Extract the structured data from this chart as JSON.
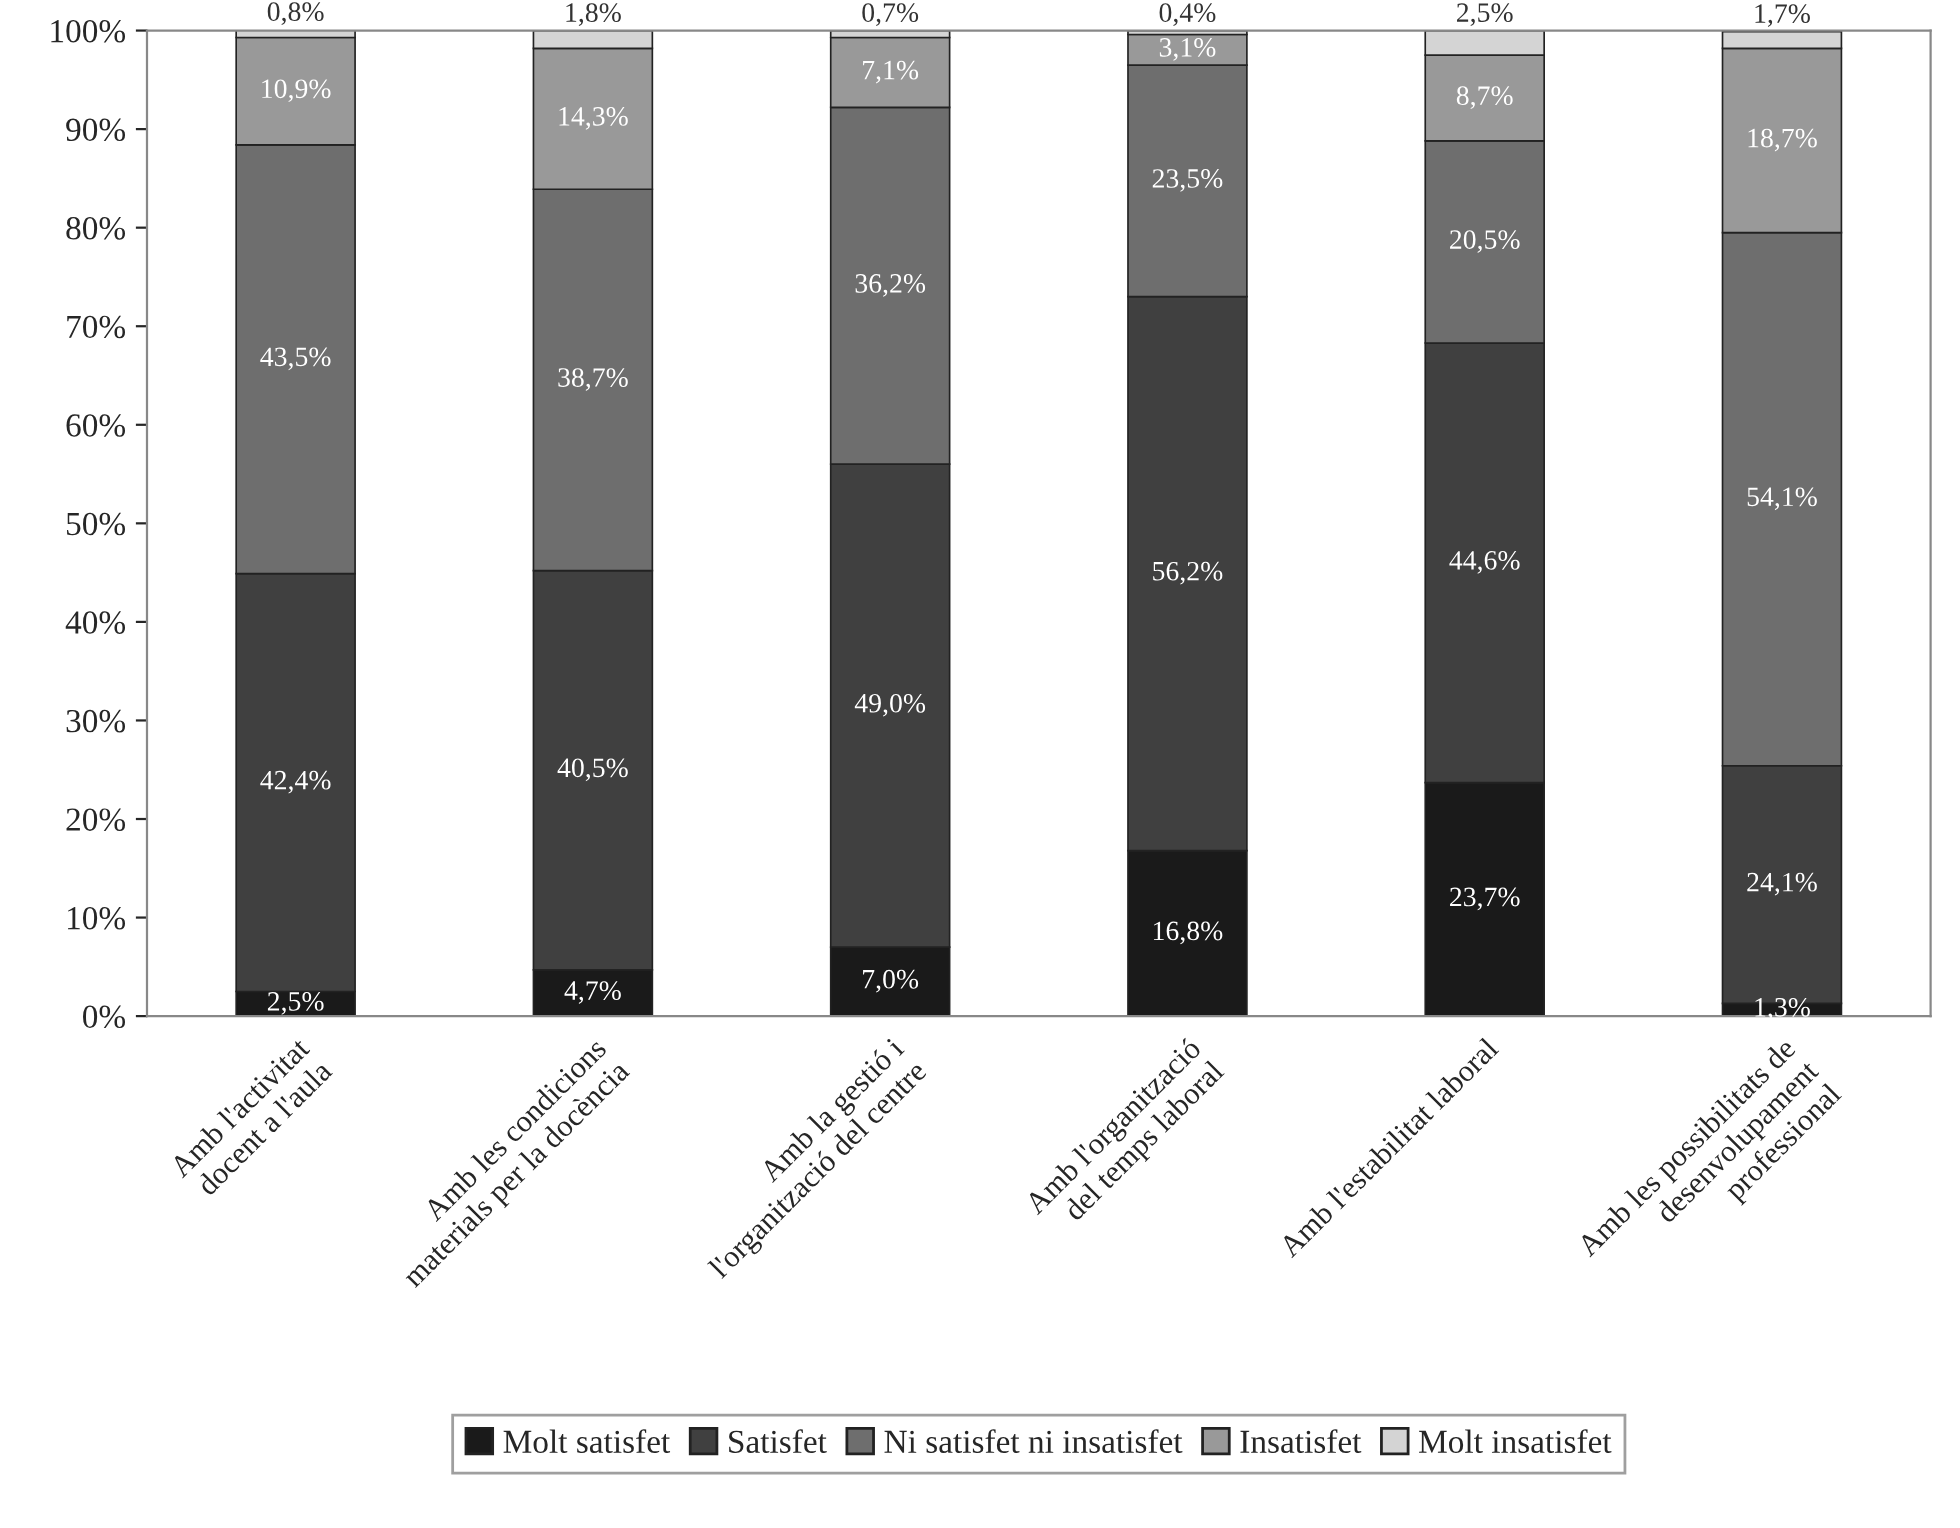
{
  "chart_data": {
    "type": "bar",
    "stacked": true,
    "categories": [
      "Amb l'activitat\ndocent a l'aula",
      "Amb les condicions\nmaterials per la docència",
      "Amb la gestió i\nl'organització del centre",
      "Amb l'organització\ndel temps laboral",
      "Amb l'estabilitat laboral",
      "Amb les possibilitats de\ndesenvolupament\nprofessional"
    ],
    "series": [
      {
        "name": "Molt satisfet",
        "color": "#1a1a1a",
        "values": [
          2.5,
          4.7,
          7.0,
          16.8,
          23.7,
          1.3
        ],
        "value_labels": [
          "2,5%",
          "4,7%",
          "7,0%",
          "16,8%",
          "23,7%",
          "1,3%"
        ]
      },
      {
        "name": "Satisfet",
        "color": "#404040",
        "values": [
          42.4,
          40.5,
          49.0,
          56.2,
          44.6,
          24.1
        ],
        "value_labels": [
          "42,4%",
          "40,5%",
          "49,0%",
          "56,2%",
          "44,6%",
          "24,1%"
        ]
      },
      {
        "name": "Ni satisfet ni insatisfet",
        "color": "#6e6e6e",
        "values": [
          43.5,
          38.7,
          36.2,
          23.5,
          20.5,
          54.1
        ],
        "value_labels": [
          "43,5%",
          "38,7%",
          "36,2%",
          "23,5%",
          "20,5%",
          "54,1%"
        ]
      },
      {
        "name": "Insatisfet",
        "color": "#999999",
        "values": [
          10.9,
          14.3,
          7.1,
          3.1,
          8.7,
          18.7
        ],
        "value_labels": [
          "10,9%",
          "14,3%",
          "7,1%",
          "3,1%",
          "8,7%",
          "18,7%"
        ]
      },
      {
        "name": "Molt insatisfet",
        "color": "#d4d4d4",
        "values": [
          0.8,
          1.8,
          0.7,
          0.4,
          2.5,
          1.7
        ],
        "value_labels": [
          "0,8%",
          "1,8%",
          "0,7%",
          "0,4%",
          "2,5%",
          "1,7%"
        ]
      }
    ],
    "ylim": [
      0,
      100
    ],
    "yticks": [
      {
        "value": 0,
        "label": "0%"
      },
      {
        "value": 10,
        "label": "10%"
      },
      {
        "value": 20,
        "label": "20%"
      },
      {
        "value": 30,
        "label": "30%"
      },
      {
        "value": 40,
        "label": "40%"
      },
      {
        "value": 50,
        "label": "50%"
      },
      {
        "value": 60,
        "label": "60%"
      },
      {
        "value": 70,
        "label": "70%"
      },
      {
        "value": 80,
        "label": "80%"
      },
      {
        "value": 90,
        "label": "90%"
      },
      {
        "value": 100,
        "label": "100%"
      }
    ],
    "grid": false,
    "legend": "bottom"
  }
}
